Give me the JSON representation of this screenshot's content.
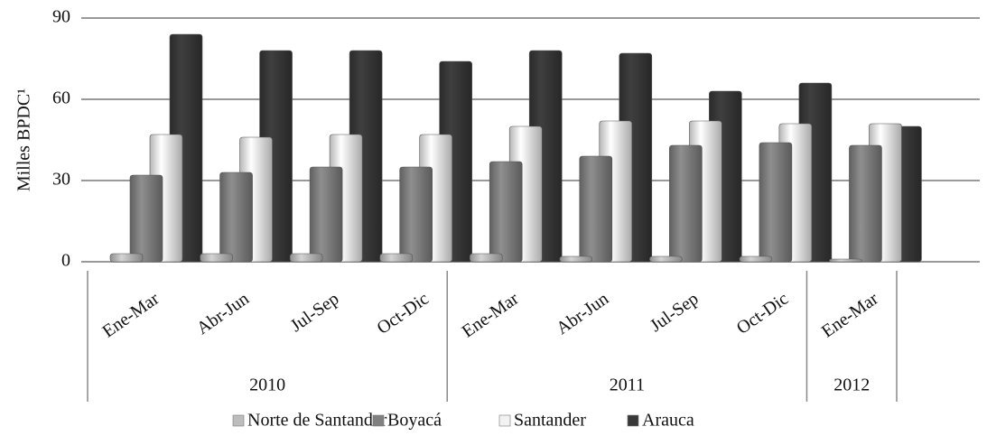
{
  "chart_data": {
    "type": "bar",
    "y_label": "Milles BPDC¹",
    "categories": [
      "Ene-Mar",
      "Abr-Jun",
      "Jul-Sep",
      "Oct-Dic",
      "Ene-Mar",
      "Abr-Jun",
      "Jul-Sep",
      "Oct-Dic",
      "Ene-Mar"
    ],
    "groups": [
      {
        "label": "2010",
        "count": 4
      },
      {
        "label": "2011",
        "count": 4
      },
      {
        "label": "2012",
        "count": 1
      }
    ],
    "series": [
      {
        "name": "Norte de Santander",
        "color": "#bdbdbd",
        "values": [
          3,
          3,
          3,
          3,
          3,
          2,
          2,
          2,
          1
        ]
      },
      {
        "name": "Boyacá",
        "color": "#808080",
        "values": [
          32,
          33,
          35,
          35,
          37,
          39,
          43,
          44,
          43
        ]
      },
      {
        "name": "Santander",
        "color": "#f2f2f2",
        "values": [
          47,
          46,
          47,
          47,
          50,
          52,
          52,
          51,
          51
        ]
      },
      {
        "name": "Arauca",
        "color": "#383838",
        "values": [
          84,
          78,
          78,
          74,
          78,
          77,
          63,
          66,
          50
        ]
      }
    ],
    "ylim": [
      0,
      90
    ],
    "yticks": [
      0,
      30,
      60,
      90
    ],
    "grid": true
  }
}
